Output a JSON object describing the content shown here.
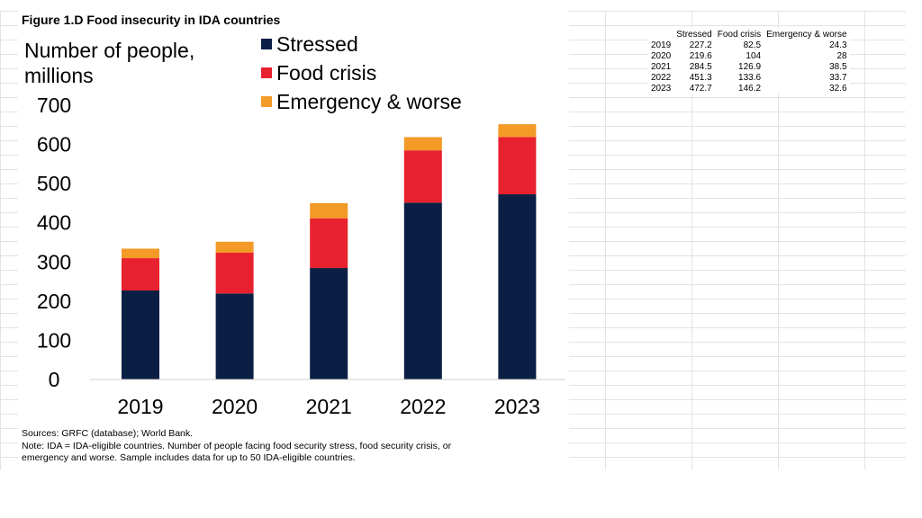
{
  "figure": {
    "title": "Figure 1.D Food insecurity in IDA countries",
    "sources": "Sources: GRFC (database); World Bank.",
    "note_line1": "Note: IDA = IDA-eligible countries. Number of people facing food security stress, food security crisis, or",
    "note_line2": "emergency and worse. Sample includes data for up to 50 IDA-eligible countries."
  },
  "chart_data": {
    "type": "bar",
    "stacked": true,
    "ylabel_line1": "Number of people,",
    "ylabel_line2": "millions",
    "categories": [
      "2019",
      "2020",
      "2021",
      "2022",
      "2023"
    ],
    "ylim": [
      0,
      700
    ],
    "yticks": [
      0,
      100,
      200,
      300,
      400,
      500,
      600,
      700
    ],
    "legend_position": "top",
    "series": [
      {
        "name": "Stressed",
        "color": "#0b1f44",
        "values": [
          227.2,
          219.6,
          284.5,
          451.3,
          472.7
        ]
      },
      {
        "name": "Food crisis",
        "color": "#e8212e",
        "values": [
          82.5,
          104,
          126.9,
          133.6,
          146.2
        ]
      },
      {
        "name": "Emergency & worse",
        "color": "#f39a27",
        "values": [
          24.3,
          28,
          38.5,
          33.7,
          32.6
        ]
      }
    ]
  },
  "table": {
    "headers": [
      "",
      "Stressed",
      "Food crisis",
      "Emergency & worse"
    ],
    "rows": [
      [
        "2019",
        "227.2",
        "82.5",
        "24.3"
      ],
      [
        "2020",
        "219.6",
        "104",
        "28"
      ],
      [
        "2021",
        "284.5",
        "126.9",
        "38.5"
      ],
      [
        "2022",
        "451.3",
        "133.6",
        "33.7"
      ],
      [
        "2023",
        "472.7",
        "146.2",
        "32.6"
      ]
    ]
  }
}
